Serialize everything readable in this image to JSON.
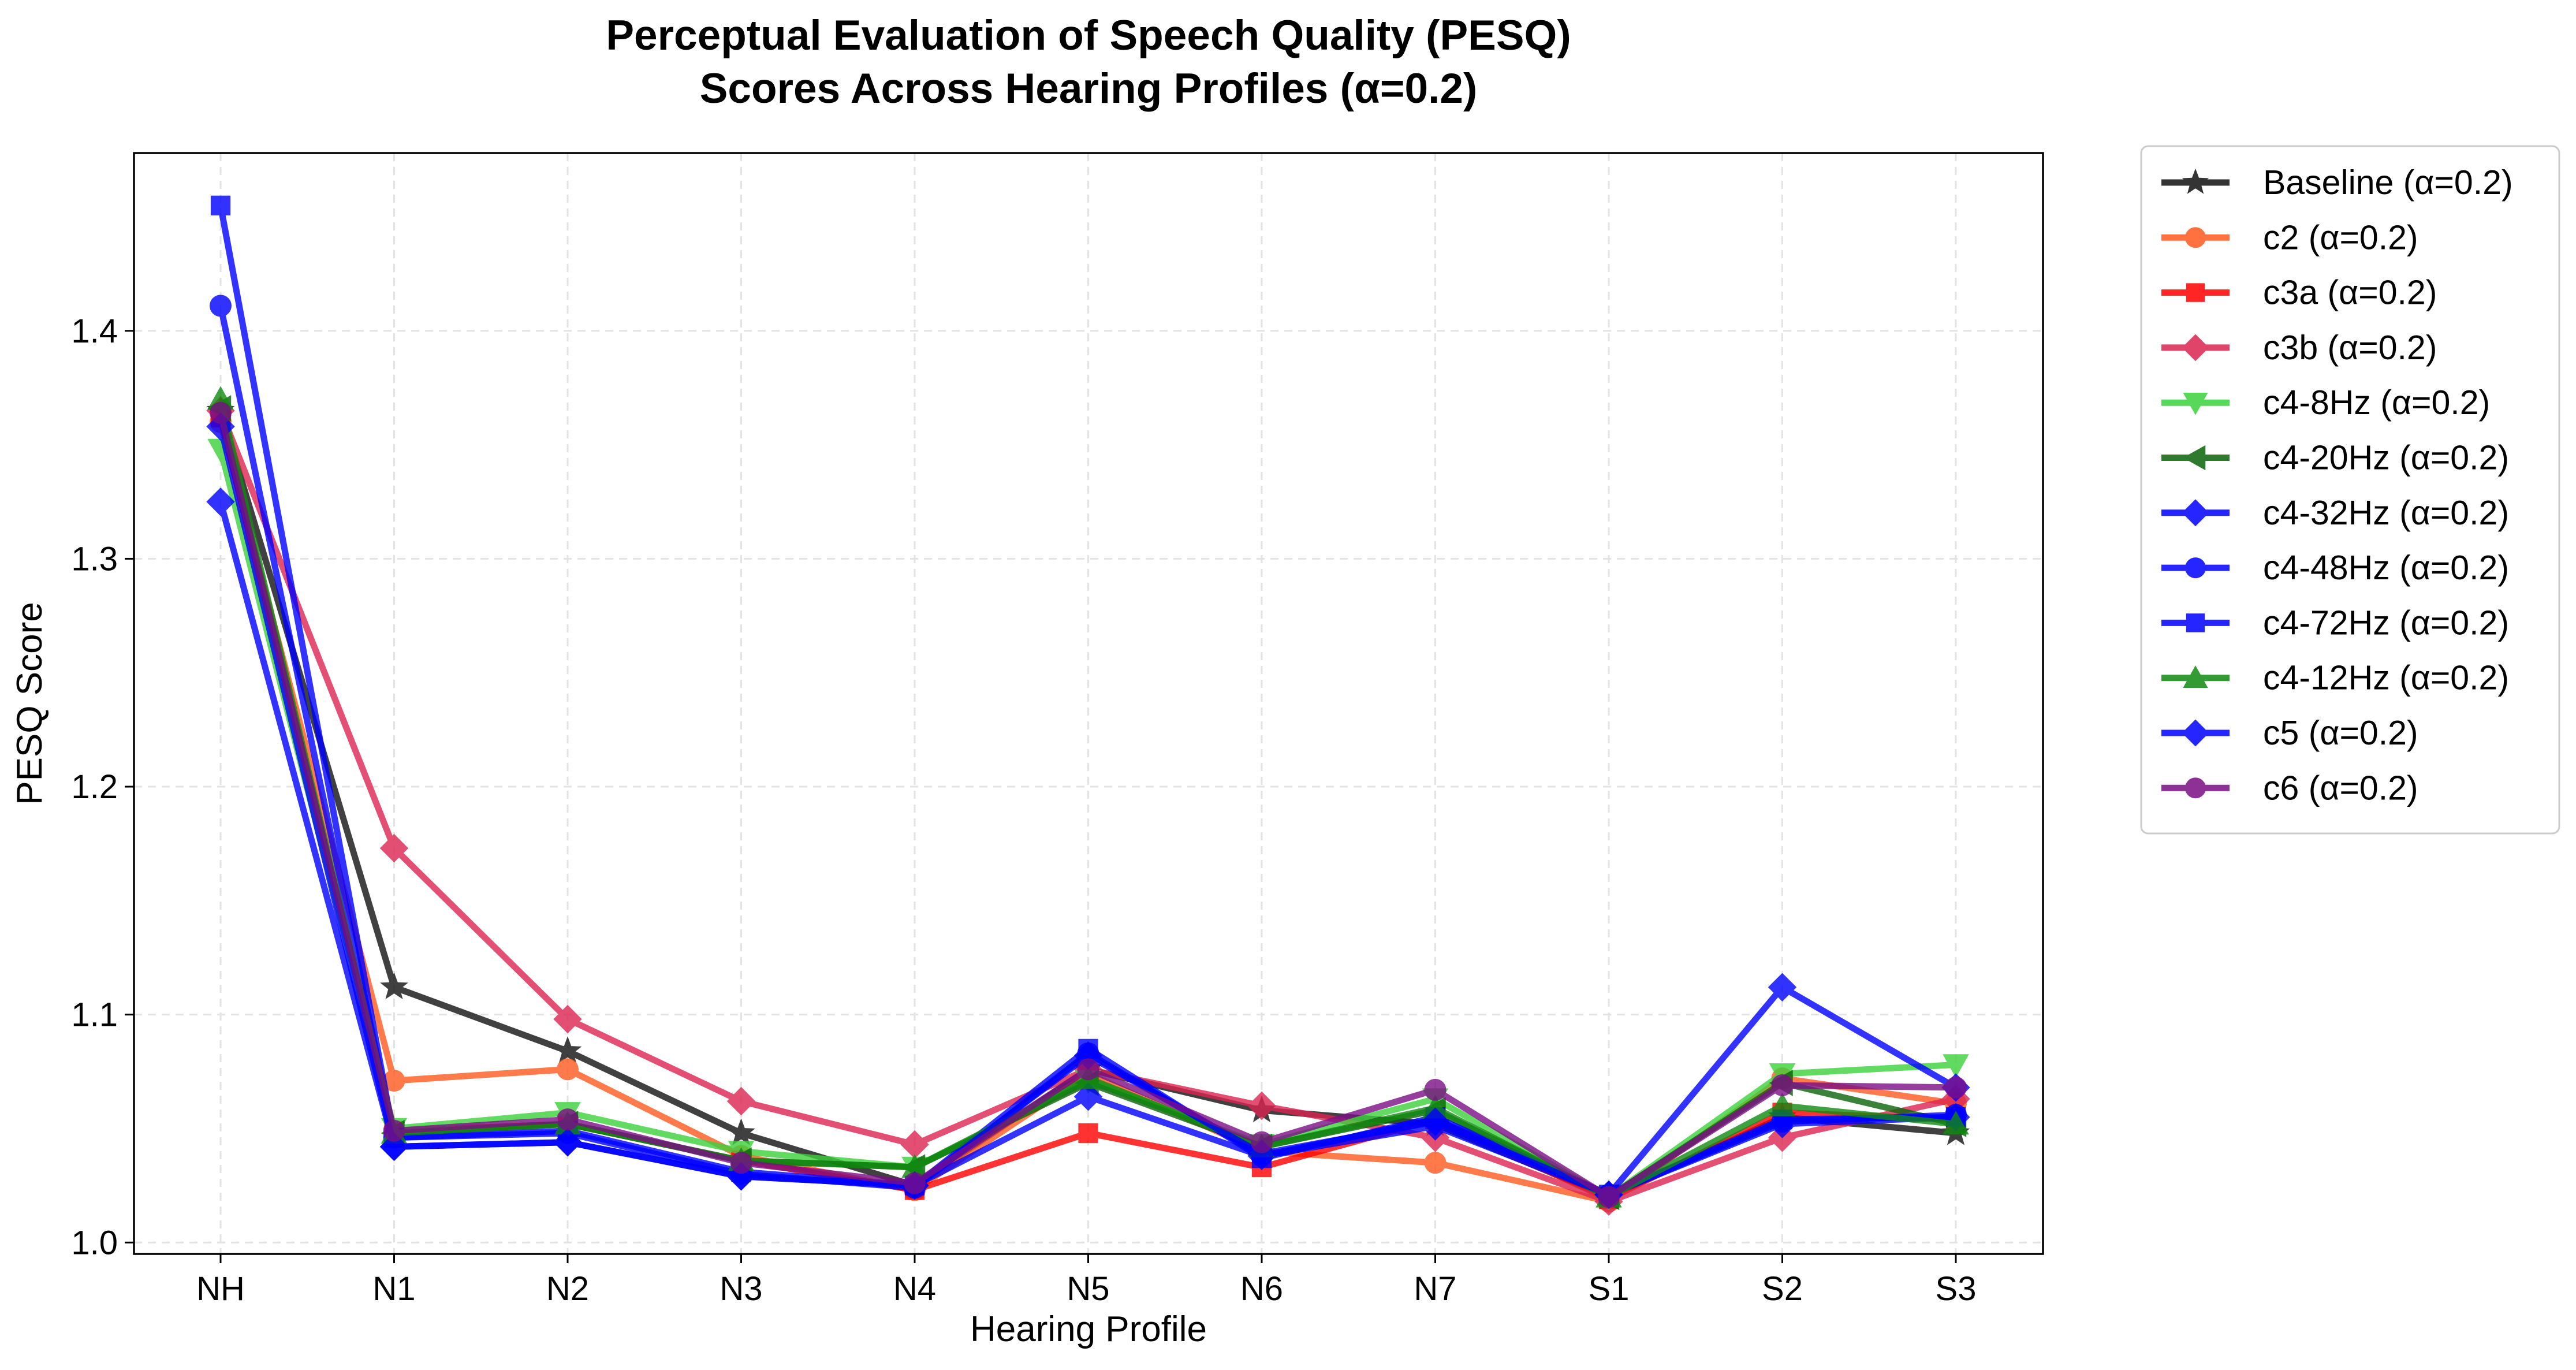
{
  "chart_data": {
    "type": "line",
    "title_lines": [
      "Perceptual Evaluation of Speech Quality (PESQ)",
      "Scores Across Hearing Profiles (α=0.2)"
    ],
    "xlabel": "Hearing Profile",
    "ylabel": "PESQ Score",
    "categories": [
      "NH",
      "N1",
      "N2",
      "N3",
      "N4",
      "N5",
      "N6",
      "N7",
      "S1",
      "S2",
      "S3"
    ],
    "ylim": [
      0.995,
      1.478
    ],
    "yticks": [
      1.0,
      1.1,
      1.2,
      1.3,
      1.4
    ],
    "ytick_labels": [
      "1.0",
      "1.1",
      "1.2",
      "1.3",
      "1.4"
    ],
    "grid": true,
    "legend_position": "outside right, upper",
    "series": [
      {
        "name": "Baseline (α=0.2)",
        "color": "#111111",
        "marker": "star",
        "values": [
          1.365,
          1.112,
          1.084,
          1.048,
          1.025,
          1.076,
          1.058,
          1.052,
          1.02,
          1.055,
          1.048
        ]
      },
      {
        "name": "c2 (α=0.2)",
        "color": "#ff5a1f",
        "marker": "circle",
        "values": [
          1.36,
          1.071,
          1.076,
          1.038,
          1.023,
          1.074,
          1.04,
          1.035,
          1.018,
          1.072,
          1.061
        ]
      },
      {
        "name": "c3a (α=0.2)",
        "color": "#ff0000",
        "marker": "square",
        "values": [
          1.362,
          1.049,
          1.052,
          1.036,
          1.023,
          1.048,
          1.033,
          1.054,
          1.019,
          1.057,
          1.054
        ]
      },
      {
        "name": "c3b (α=0.2)",
        "color": "#dc2450",
        "marker": "diamond",
        "values": [
          1.365,
          1.173,
          1.098,
          1.062,
          1.043,
          1.076,
          1.06,
          1.046,
          1.018,
          1.046,
          1.063
        ]
      },
      {
        "name": "c4-8Hz (α=0.2)",
        "color": "#3cd23c",
        "marker": "triangle-down",
        "values": [
          1.348,
          1.05,
          1.057,
          1.04,
          1.033,
          1.071,
          1.043,
          1.063,
          1.02,
          1.074,
          1.078
        ]
      },
      {
        "name": "c4-20Hz (α=0.2)",
        "color": "#0a640a",
        "marker": "triangle-left",
        "values": [
          1.366,
          1.048,
          1.052,
          1.036,
          1.033,
          1.07,
          1.042,
          1.058,
          1.02,
          1.07,
          1.052
        ]
      },
      {
        "name": "c4-32Hz (α=0.2)",
        "color": "#0000ff",
        "marker": "diamond",
        "values": [
          1.325,
          1.042,
          1.044,
          1.029,
          1.025,
          1.064,
          1.038,
          1.051,
          1.021,
          1.052,
          1.055
        ]
      },
      {
        "name": "c4-48Hz (α=0.2)",
        "color": "#0000ff",
        "marker": "circle",
        "values": [
          1.411,
          1.046,
          1.048,
          1.03,
          1.024,
          1.083,
          1.038,
          1.054,
          1.021,
          1.053,
          1.056
        ]
      },
      {
        "name": "c4-72Hz (α=0.2)",
        "color": "#0000ff",
        "marker": "square",
        "values": [
          1.455,
          1.046,
          1.049,
          1.031,
          1.025,
          1.085,
          1.037,
          1.055,
          1.021,
          1.054,
          1.055
        ]
      },
      {
        "name": "c4-12Hz (α=0.2)",
        "color": "#108a10",
        "marker": "triangle-up",
        "values": [
          1.37,
          1.048,
          1.052,
          1.036,
          1.033,
          1.072,
          1.042,
          1.059,
          1.02,
          1.06,
          1.052
        ]
      },
      {
        "name": "c5 (α=0.2)",
        "color": "#0000ff",
        "marker": "diamond",
        "values": [
          1.358,
          1.042,
          1.044,
          1.029,
          1.025,
          1.082,
          1.039,
          1.053,
          1.021,
          1.112,
          1.068
        ]
      },
      {
        "name": "c6 (α=0.2)",
        "color": "#7b0e86",
        "marker": "circle",
        "values": [
          1.364,
          1.049,
          1.054,
          1.035,
          1.026,
          1.076,
          1.044,
          1.067,
          1.02,
          1.069,
          1.068
        ]
      }
    ]
  }
}
